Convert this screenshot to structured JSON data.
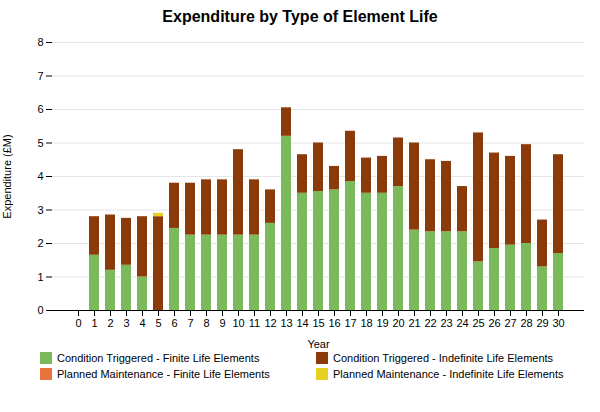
{
  "chart_data": {
    "type": "bar",
    "title": "Expenditure by Type of Element Life",
    "xlabel": "Year",
    "ylabel": "Expenditure (£M)",
    "stacked": true,
    "grid": true,
    "legend": "bottom",
    "categories": [
      "0",
      "1",
      "2",
      "3",
      "4",
      "5",
      "6",
      "7",
      "8",
      "9",
      "10",
      "11",
      "12",
      "13",
      "14",
      "15",
      "16",
      "17",
      "18",
      "19",
      "20",
      "21",
      "22",
      "23",
      "24",
      "25",
      "26",
      "27",
      "28",
      "29",
      "30"
    ],
    "series": [
      {
        "name": "Condition Triggered - Finite Life Elements",
        "color": "#7aba5a",
        "values": [
          0.0,
          1.65,
          1.2,
          1.35,
          1.0,
          0.0,
          2.45,
          2.25,
          2.25,
          2.25,
          2.25,
          2.25,
          2.6,
          5.2,
          3.5,
          3.55,
          3.6,
          3.85,
          3.5,
          3.5,
          3.7,
          2.4,
          2.35,
          2.35,
          2.35,
          1.45,
          1.85,
          1.95,
          2.0,
          1.3,
          1.7
        ]
      },
      {
        "name": "Condition Triggered - Indefinite Life Elements",
        "color": "#8b3a0a",
        "values": [
          0.0,
          1.15,
          1.65,
          1.4,
          1.8,
          2.8,
          1.35,
          1.55,
          1.65,
          1.65,
          2.55,
          1.65,
          1.0,
          0.85,
          1.15,
          1.45,
          0.7,
          1.5,
          1.05,
          1.1,
          1.45,
          2.6,
          2.15,
          2.1,
          1.35,
          3.85,
          2.85,
          2.65,
          2.95,
          1.4,
          2.95
        ]
      },
      {
        "name": "Planned Maintenance - Finite Life Elements",
        "color": "#e8733a",
        "values": [
          0.0,
          0.0,
          0.0,
          0.0,
          0.0,
          0.0,
          0.0,
          0.0,
          0.0,
          0.0,
          0.0,
          0.0,
          0.0,
          0.0,
          0.0,
          0.0,
          0.0,
          0.0,
          0.0,
          0.0,
          0.0,
          0.0,
          0.0,
          0.0,
          0.0,
          0.0,
          0.0,
          0.0,
          0.0,
          0.0,
          0.0
        ]
      },
      {
        "name": "Planned Maintenance - Indefinite Life Elements",
        "color": "#e8d020",
        "values": [
          0.0,
          0.0,
          0.0,
          0.0,
          0.0,
          0.1,
          0.0,
          0.0,
          0.0,
          0.0,
          0.0,
          0.0,
          0.0,
          0.0,
          0.0,
          0.0,
          0.0,
          0.0,
          0.0,
          0.0,
          0.0,
          0.0,
          0.0,
          0.0,
          0.0,
          0.0,
          0.0,
          0.0,
          0.0,
          0.0,
          0.0
        ]
      }
    ],
    "ylim": [
      0,
      8
    ],
    "yticks": [
      0,
      1,
      2,
      3,
      4,
      5,
      6,
      7,
      8
    ]
  }
}
